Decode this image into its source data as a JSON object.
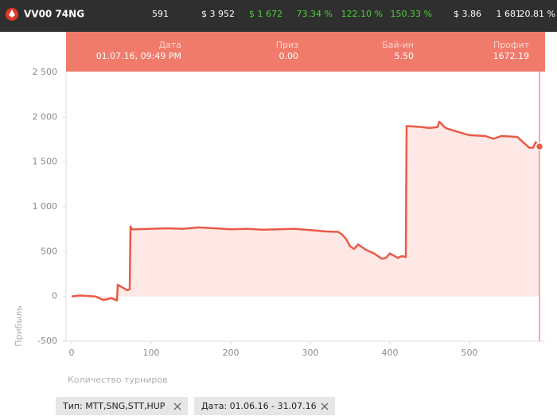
{
  "header": {
    "player": "VV00 74NG",
    "stats": [
      "591",
      "$ 3 952",
      "$ 1 672",
      "73.34 %",
      "122.10 %",
      "150.33 %",
      "$ 3.86",
      "1 681",
      "20.81 %"
    ]
  },
  "tooltip": {
    "columns": [
      {
        "label": "Дата",
        "value": "01.07.16, 09:49 PM"
      },
      {
        "label": "Приз",
        "value": "0.00"
      },
      {
        "label": "Бай-ин",
        "value": "5.50"
      },
      {
        "label": "Профит",
        "value": "1672.19"
      }
    ]
  },
  "chart_data": {
    "type": "line",
    "color": "#ea5a47",
    "fill": "#fde8e6",
    "x_label": "Количество турниров",
    "y_label": "Прибыль",
    "x": [
      0,
      10,
      20,
      30,
      40,
      50,
      57,
      58,
      62,
      70,
      73,
      74,
      76,
      80,
      100,
      120,
      140,
      160,
      180,
      200,
      220,
      240,
      260,
      280,
      300,
      320,
      335,
      340,
      345,
      350,
      355,
      360,
      370,
      380,
      390,
      395,
      400,
      410,
      415,
      420,
      421,
      425,
      440,
      450,
      460,
      462,
      470,
      480,
      500,
      520,
      530,
      540,
      560,
      575,
      580,
      583,
      588
    ],
    "values": [
      0,
      10,
      5,
      0,
      -40,
      -20,
      -45,
      130,
      110,
      70,
      80,
      780,
      750,
      750,
      755,
      760,
      755,
      770,
      760,
      750,
      755,
      745,
      750,
      755,
      740,
      725,
      720,
      690,
      640,
      560,
      530,
      580,
      520,
      480,
      420,
      430,
      480,
      430,
      450,
      440,
      1900,
      1900,
      1890,
      1880,
      1890,
      1950,
      1880,
      1850,
      1800,
      1790,
      1760,
      1790,
      1780,
      1660,
      1660,
      1720,
      1672.19
    ],
    "xlim": [
      -7,
      595
    ],
    "ylim": [
      -500,
      2500
    ],
    "xticks": [
      0,
      100,
      200,
      300,
      400,
      500
    ],
    "yticks": [
      {
        "value": -500,
        "label": "-500"
      },
      0,
      500,
      {
        "value": 1000,
        "label": "1 000"
      },
      {
        "value": 1500,
        "label": "1 500"
      },
      {
        "value": 2000,
        "label": "2 000"
      },
      {
        "value": 2500,
        "label": "2 500"
      }
    ]
  },
  "filters": [
    "Тип: MTT,SNG,STT,HUP",
    "Дата: 01.06.16 - 31.07.16"
  ]
}
